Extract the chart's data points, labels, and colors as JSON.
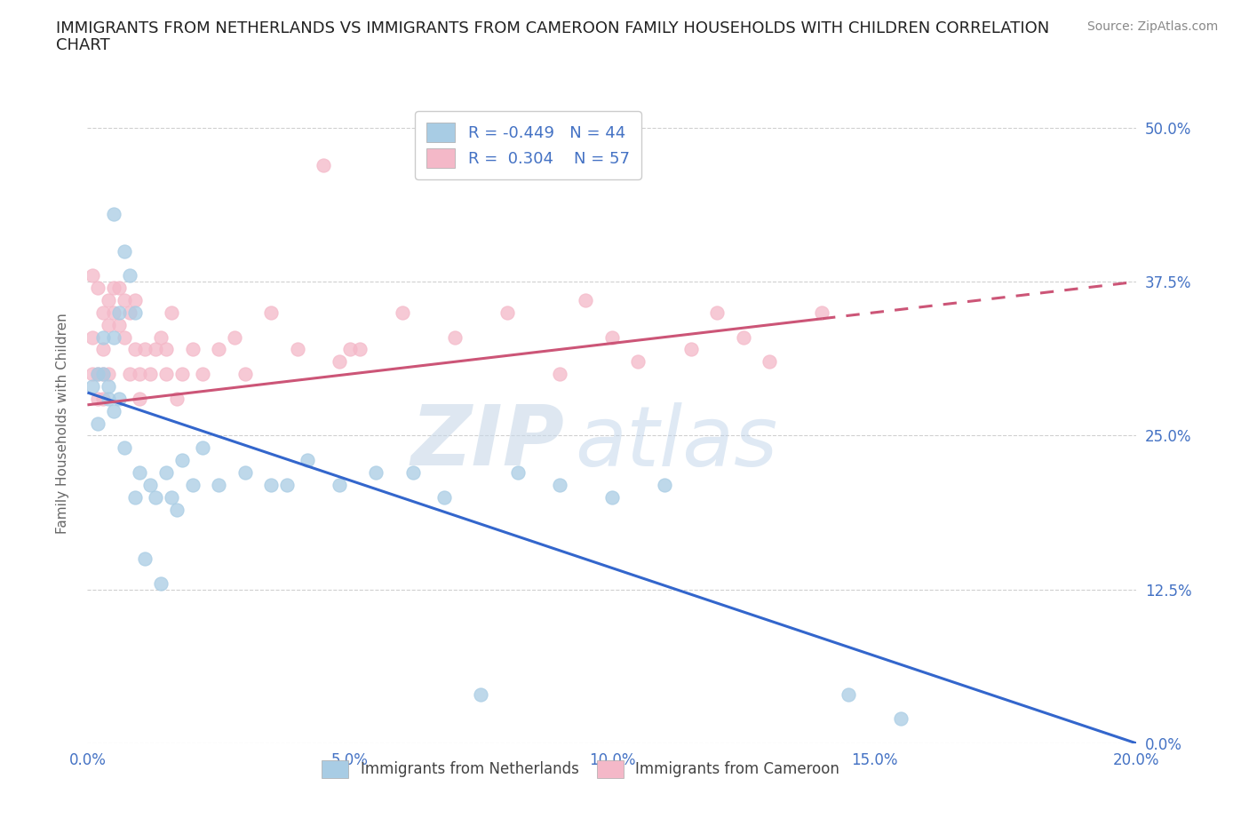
{
  "title_line1": "IMMIGRANTS FROM NETHERLANDS VS IMMIGRANTS FROM CAMEROON FAMILY HOUSEHOLDS WITH CHILDREN CORRELATION",
  "title_line2": "CHART",
  "source": "Source: ZipAtlas.com",
  "xlabel_ticks": [
    "0.0%",
    "5.0%",
    "10.0%",
    "15.0%",
    "20.0%"
  ],
  "xlabel_vals": [
    0.0,
    0.05,
    0.1,
    0.15,
    0.2
  ],
  "ylabel_ticks": [
    "0.0%",
    "12.5%",
    "25.0%",
    "37.5%",
    "50.0%"
  ],
  "ylabel_vals": [
    0.0,
    0.125,
    0.25,
    0.375,
    0.5
  ],
  "ylabel_label": "Family Households with Children",
  "netherlands_R": -0.449,
  "netherlands_N": 44,
  "cameroon_R": 0.304,
  "cameroon_N": 57,
  "netherlands_color": "#a8cce4",
  "cameroon_color": "#f4b8c8",
  "netherlands_line_color": "#3366cc",
  "cameroon_line_color": "#cc5577",
  "nl_trend_x0": 0.0,
  "nl_trend_y0": 0.285,
  "nl_trend_x1": 0.2,
  "nl_trend_y1": 0.0,
  "cam_trend_x0": 0.0,
  "cam_trend_y0": 0.275,
  "cam_trend_x1_solid": 0.14,
  "cam_trend_y1_solid": 0.345,
  "cam_trend_x1_dash": 0.2,
  "cam_trend_y1_dash": 0.375,
  "netherlands_x": [
    0.001,
    0.002,
    0.002,
    0.003,
    0.003,
    0.004,
    0.004,
    0.005,
    0.005,
    0.005,
    0.006,
    0.006,
    0.007,
    0.007,
    0.008,
    0.009,
    0.009,
    0.01,
    0.011,
    0.012,
    0.013,
    0.014,
    0.015,
    0.016,
    0.017,
    0.018,
    0.02,
    0.022,
    0.025,
    0.03,
    0.035,
    0.038,
    0.042,
    0.048,
    0.055,
    0.062,
    0.068,
    0.075,
    0.082,
    0.09,
    0.1,
    0.11,
    0.145,
    0.155
  ],
  "netherlands_y": [
    0.29,
    0.3,
    0.26,
    0.33,
    0.3,
    0.28,
    0.29,
    0.43,
    0.33,
    0.27,
    0.35,
    0.28,
    0.4,
    0.24,
    0.38,
    0.35,
    0.2,
    0.22,
    0.15,
    0.21,
    0.2,
    0.13,
    0.22,
    0.2,
    0.19,
    0.23,
    0.21,
    0.24,
    0.21,
    0.22,
    0.21,
    0.21,
    0.23,
    0.21,
    0.22,
    0.22,
    0.2,
    0.04,
    0.22,
    0.21,
    0.2,
    0.21,
    0.04,
    0.02
  ],
  "cameroon_x": [
    0.001,
    0.001,
    0.001,
    0.002,
    0.002,
    0.002,
    0.003,
    0.003,
    0.003,
    0.003,
    0.004,
    0.004,
    0.004,
    0.005,
    0.005,
    0.006,
    0.006,
    0.007,
    0.007,
    0.008,
    0.008,
    0.009,
    0.009,
    0.01,
    0.01,
    0.011,
    0.012,
    0.013,
    0.014,
    0.015,
    0.015,
    0.016,
    0.017,
    0.018,
    0.02,
    0.022,
    0.025,
    0.028,
    0.03,
    0.035,
    0.04,
    0.045,
    0.05,
    0.06,
    0.07,
    0.08,
    0.09,
    0.1,
    0.12,
    0.13,
    0.14,
    0.048,
    0.052,
    0.095,
    0.105,
    0.115,
    0.125
  ],
  "cameroon_y": [
    0.33,
    0.3,
    0.38,
    0.37,
    0.3,
    0.28,
    0.35,
    0.32,
    0.3,
    0.28,
    0.36,
    0.34,
    0.3,
    0.37,
    0.35,
    0.37,
    0.34,
    0.36,
    0.33,
    0.35,
    0.3,
    0.36,
    0.32,
    0.3,
    0.28,
    0.32,
    0.3,
    0.32,
    0.33,
    0.32,
    0.3,
    0.35,
    0.28,
    0.3,
    0.32,
    0.3,
    0.32,
    0.33,
    0.3,
    0.35,
    0.32,
    0.47,
    0.32,
    0.35,
    0.33,
    0.35,
    0.3,
    0.33,
    0.35,
    0.31,
    0.35,
    0.31,
    0.32,
    0.36,
    0.31,
    0.32,
    0.33
  ],
  "watermark_zip": "ZIP",
  "watermark_atlas": "atlas",
  "xlim": [
    0.0,
    0.2
  ],
  "ylim": [
    0.0,
    0.52
  ],
  "grid_color": "#d0d0d0",
  "background_color": "#ffffff",
  "tick_color": "#4472c4",
  "title_color": "#222222",
  "source_color": "#888888"
}
